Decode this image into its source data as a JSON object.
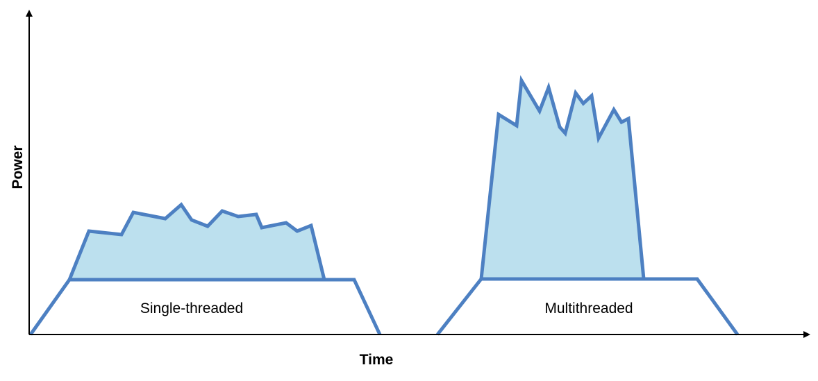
{
  "axes": {
    "y_label": "Power",
    "x_label": "Time"
  },
  "workloads": [
    {
      "label": "Single-threaded"
    },
    {
      "label": "Multithreaded"
    }
  ],
  "colors": {
    "stroke": "#4d80c2",
    "fill": "#bce0ee",
    "axis": "#000000"
  }
}
